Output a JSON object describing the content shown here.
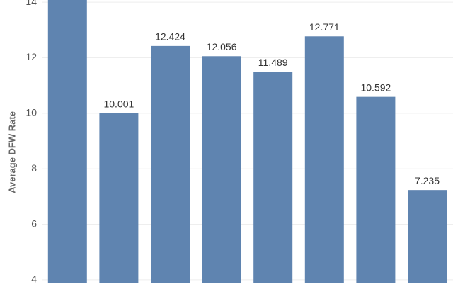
{
  "chart_data": {
    "type": "bar",
    "y_label": "Average DFW Rate",
    "categories": [
      null,
      null,
      null,
      null,
      null,
      null,
      null,
      null
    ],
    "values": [
      14.5,
      10.001,
      12.424,
      12.056,
      11.489,
      12.771,
      10.592,
      7.235
    ],
    "color": "#5f84b0",
    "ylim": [
      3.87,
      14.08
    ],
    "yticks": [
      4,
      6,
      8,
      10,
      12,
      14
    ],
    "grid": true
  }
}
